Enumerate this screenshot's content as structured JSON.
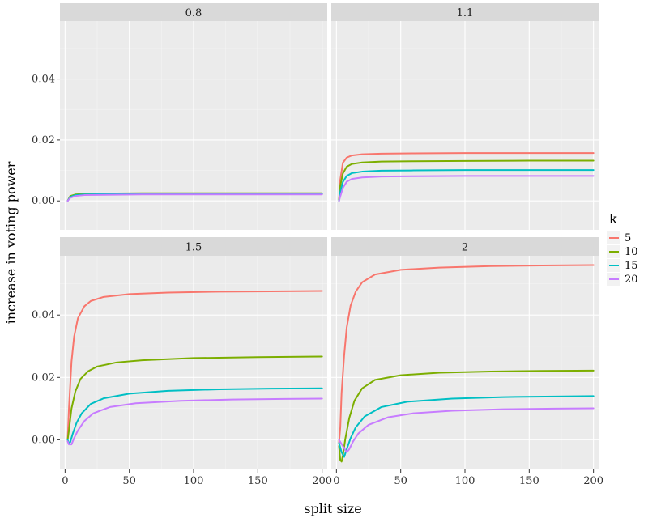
{
  "chart_data": {
    "type": "line",
    "xlabel": "split size",
    "ylabel": "increase in voting power",
    "xlim": [
      -4,
      204
    ],
    "ylim": [
      -0.0095,
      0.059
    ],
    "x_ticks": [
      0,
      50,
      100,
      150,
      200
    ],
    "y_ticks": [
      0.0,
      0.02,
      0.04
    ],
    "y_tick_labels": [
      "0.00",
      "0.02",
      "0.04"
    ],
    "legend": {
      "title": "k",
      "position": "right",
      "entries": [
        {
          "label": "5",
          "color": "#F8766D"
        },
        {
          "label": "10",
          "color": "#7CAE00"
        },
        {
          "label": "15",
          "color": "#00BFC4"
        },
        {
          "label": "20",
          "color": "#C77CFF"
        }
      ]
    },
    "panels": [
      {
        "label": "0.8",
        "series": [
          {
            "name": "5",
            "color": "#F8766D",
            "points": [
              [
                2,
                0.0
              ],
              [
                4,
                0.0015
              ],
              [
                8,
                0.002
              ],
              [
                15,
                0.0022
              ],
              [
                30,
                0.0023
              ],
              [
                60,
                0.0024
              ],
              [
                100,
                0.0024
              ],
              [
                150,
                0.0024
              ],
              [
                200,
                0.0024
              ]
            ]
          },
          {
            "name": "10",
            "color": "#7CAE00",
            "points": [
              [
                2,
                0.0
              ],
              [
                4,
                0.0016
              ],
              [
                8,
                0.0021
              ],
              [
                15,
                0.0023
              ],
              [
                30,
                0.0024
              ],
              [
                60,
                0.0025
              ],
              [
                100,
                0.0025
              ],
              [
                150,
                0.0025
              ],
              [
                200,
                0.0025
              ]
            ]
          },
          {
            "name": "15",
            "color": "#00BFC4",
            "points": [
              [
                2,
                0.0
              ],
              [
                4,
                0.0013
              ],
              [
                8,
                0.0019
              ],
              [
                15,
                0.0021
              ],
              [
                30,
                0.0022
              ],
              [
                60,
                0.0023
              ],
              [
                100,
                0.0023
              ],
              [
                150,
                0.0023
              ],
              [
                200,
                0.0023
              ]
            ]
          },
          {
            "name": "20",
            "color": "#C77CFF",
            "points": [
              [
                2,
                0.0
              ],
              [
                4,
                0.001
              ],
              [
                8,
                0.0016
              ],
              [
                15,
                0.0019
              ],
              [
                30,
                0.002
              ],
              [
                60,
                0.0021
              ],
              [
                100,
                0.0021
              ],
              [
                150,
                0.0021
              ],
              [
                200,
                0.0021
              ]
            ]
          }
        ]
      },
      {
        "label": "1.1",
        "series": [
          {
            "name": "5",
            "color": "#F8766D",
            "points": [
              [
                2,
                0.0
              ],
              [
                3,
                0.007
              ],
              [
                5,
                0.0125
              ],
              [
                8,
                0.0142
              ],
              [
                12,
                0.0149
              ],
              [
                20,
                0.0153
              ],
              [
                35,
                0.0155
              ],
              [
                60,
                0.0156
              ],
              [
                100,
                0.0157
              ],
              [
                150,
                0.0157
              ],
              [
                200,
                0.0157
              ]
            ]
          },
          {
            "name": "10",
            "color": "#7CAE00",
            "points": [
              [
                2,
                0.0
              ],
              [
                3,
                0.005
              ],
              [
                5,
                0.009
              ],
              [
                8,
                0.0112
              ],
              [
                12,
                0.0121
              ],
              [
                20,
                0.0126
              ],
              [
                35,
                0.0129
              ],
              [
                60,
                0.013
              ],
              [
                100,
                0.0131
              ],
              [
                150,
                0.0132
              ],
              [
                200,
                0.0132
              ]
            ]
          },
          {
            "name": "15",
            "color": "#00BFC4",
            "points": [
              [
                2,
                0.0
              ],
              [
                3,
                0.003
              ],
              [
                5,
                0.0062
              ],
              [
                8,
                0.0082
              ],
              [
                12,
                0.0091
              ],
              [
                20,
                0.0096
              ],
              [
                35,
                0.0099
              ],
              [
                60,
                0.01
              ],
              [
                100,
                0.0101
              ],
              [
                150,
                0.0101
              ],
              [
                200,
                0.0101
              ]
            ]
          },
          {
            "name": "20",
            "color": "#C77CFF",
            "points": [
              [
                2,
                0.0
              ],
              [
                3,
                0.0015
              ],
              [
                5,
                0.0042
              ],
              [
                8,
                0.0063
              ],
              [
                12,
                0.0072
              ],
              [
                20,
                0.0077
              ],
              [
                35,
                0.008
              ],
              [
                60,
                0.0081
              ],
              [
                100,
                0.0082
              ],
              [
                150,
                0.0082
              ],
              [
                200,
                0.0082
              ]
            ]
          }
        ]
      },
      {
        "label": "1.5",
        "series": [
          {
            "name": "5",
            "color": "#F8766D",
            "points": [
              [
                2,
                0.0
              ],
              [
                3,
                0.01
              ],
              [
                5,
                0.025
              ],
              [
                7,
                0.033
              ],
              [
                10,
                0.039
              ],
              [
                15,
                0.0428
              ],
              [
                20,
                0.0445
              ],
              [
                30,
                0.0458
              ],
              [
                50,
                0.0467
              ],
              [
                80,
                0.0472
              ],
              [
                120,
                0.0475
              ],
              [
                160,
                0.0476
              ],
              [
                200,
                0.0477
              ]
            ]
          },
          {
            "name": "10",
            "color": "#7CAE00",
            "points": [
              [
                2,
                0.0
              ],
              [
                3,
                0.003
              ],
              [
                5,
                0.01
              ],
              [
                8,
                0.0155
              ],
              [
                12,
                0.0195
              ],
              [
                18,
                0.022
              ],
              [
                25,
                0.0235
              ],
              [
                40,
                0.0248
              ],
              [
                60,
                0.0255
              ],
              [
                100,
                0.0262
              ],
              [
                150,
                0.0265
              ],
              [
                200,
                0.0267
              ]
            ]
          },
          {
            "name": "15",
            "color": "#00BFC4",
            "points": [
              [
                2,
                0.0
              ],
              [
                3,
                -0.001
              ],
              [
                4,
                -0.0008
              ],
              [
                6,
                0.002
              ],
              [
                9,
                0.0055
              ],
              [
                13,
                0.0085
              ],
              [
                20,
                0.0115
              ],
              [
                30,
                0.0133
              ],
              [
                50,
                0.0148
              ],
              [
                80,
                0.0157
              ],
              [
                120,
                0.0162
              ],
              [
                160,
                0.0164
              ],
              [
                200,
                0.0165
              ]
            ]
          },
          {
            "name": "20",
            "color": "#C77CFF",
            "points": [
              [
                2,
                -0.0005
              ],
              [
                3,
                -0.0015
              ],
              [
                5,
                -0.0015
              ],
              [
                7,
                0.0005
              ],
              [
                10,
                0.003
              ],
              [
                15,
                0.006
              ],
              [
                22,
                0.0085
              ],
              [
                35,
                0.0105
              ],
              [
                55,
                0.0117
              ],
              [
                90,
                0.0125
              ],
              [
                130,
                0.0129
              ],
              [
                170,
                0.0131
              ],
              [
                200,
                0.0132
              ]
            ]
          }
        ]
      },
      {
        "label": "2",
        "series": [
          {
            "name": "5",
            "color": "#F8766D",
            "points": [
              [
                2,
                -0.001
              ],
              [
                3,
                0.004
              ],
              [
                4,
                0.015
              ],
              [
                6,
                0.027
              ],
              [
                8,
                0.036
              ],
              [
                11,
                0.043
              ],
              [
                15,
                0.0475
              ],
              [
                20,
                0.0505
              ],
              [
                30,
                0.053
              ],
              [
                50,
                0.0545
              ],
              [
                80,
                0.0552
              ],
              [
                120,
                0.0557
              ],
              [
                160,
                0.0559
              ],
              [
                200,
                0.056
              ]
            ]
          },
          {
            "name": "10",
            "color": "#7CAE00",
            "points": [
              [
                2,
                -0.002
              ],
              [
                3,
                -0.0065
              ],
              [
                4,
                -0.007
              ],
              [
                5,
                -0.005
              ],
              [
                7,
                0.0005
              ],
              [
                10,
                0.007
              ],
              [
                14,
                0.0125
              ],
              [
                20,
                0.0165
              ],
              [
                30,
                0.0192
              ],
              [
                50,
                0.0207
              ],
              [
                80,
                0.0215
              ],
              [
                120,
                0.0219
              ],
              [
                160,
                0.0221
              ],
              [
                200,
                0.0222
              ]
            ]
          },
          {
            "name": "15",
            "color": "#00BFC4",
            "points": [
              [
                2,
                -0.001
              ],
              [
                4,
                -0.004
              ],
              [
                6,
                -0.0055
              ],
              [
                8,
                -0.003
              ],
              [
                11,
                0.0005
              ],
              [
                15,
                0.004
              ],
              [
                22,
                0.0075
              ],
              [
                35,
                0.0105
              ],
              [
                55,
                0.0122
              ],
              [
                90,
                0.0132
              ],
              [
                130,
                0.0137
              ],
              [
                170,
                0.0139
              ],
              [
                200,
                0.014
              ]
            ]
          },
          {
            "name": "20",
            "color": "#C77CFF",
            "points": [
              [
                2,
                0.0
              ],
              [
                5,
                -0.002
              ],
              [
                8,
                -0.004
              ],
              [
                10,
                -0.003
              ],
              [
                13,
                -0.0005
              ],
              [
                17,
                0.002
              ],
              [
                25,
                0.0048
              ],
              [
                40,
                0.0072
              ],
              [
                60,
                0.0085
              ],
              [
                90,
                0.0093
              ],
              [
                130,
                0.0098
              ],
              [
                170,
                0.01
              ],
              [
                200,
                0.0101
              ]
            ]
          }
        ]
      }
    ]
  }
}
